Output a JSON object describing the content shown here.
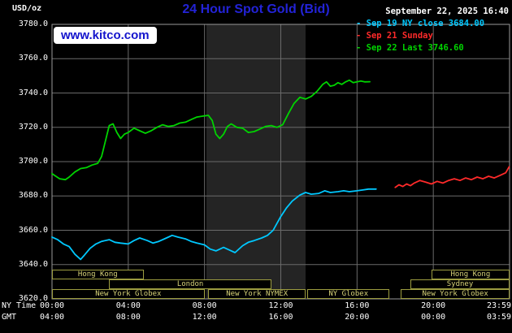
{
  "header": {
    "units_label": "USD/oz",
    "title": "24 Hour Spot Gold (Bid)",
    "datetime": "September 22, 2025 16:40",
    "watermark": "www.kitco.com"
  },
  "colors": {
    "background": "#000000",
    "title_blue": "#2323d7",
    "watermark_blue": "#1414cc",
    "grid": "#6a6a6a",
    "plot_border": "#9a9a9a",
    "band": "#242424",
    "session_border": "#9c9c40",
    "session_text": "#d6d278",
    "cyan": "#00c8ff",
    "red": "#ff2a2a",
    "green": "#00d400"
  },
  "legend": [
    {
      "label": "Sep 19 NY close 3684.00",
      "color": "#00c8ff"
    },
    {
      "label": "Sep 21 Sunday",
      "color": "#ff2a2a"
    },
    {
      "label": "Sep 22 Last 3746.60",
      "color": "#00d400"
    }
  ],
  "axes": {
    "y_ticks": [
      "3780.0",
      "3760.0",
      "3740.0",
      "3720.0",
      "3700.0",
      "3680.0",
      "3660.0",
      "3640.0",
      "3620.0"
    ],
    "x_ticks_ny": [
      "00:00",
      "04:00",
      "08:00",
      "12:00",
      "16:00",
      "20:00",
      "23:59"
    ],
    "x_ticks_gmt": [
      "04:00",
      "08:00",
      "12:00",
      "16:00",
      "20:00",
      "00:00",
      "03:59"
    ],
    "x_axis_label_ny": "NY Time",
    "x_axis_label_gmt": "GMT"
  },
  "sessions": [
    {
      "label": "Hong Kong",
      "row": 1,
      "start": 0,
      "end": 4.8
    },
    {
      "label": "Hong Kong",
      "row": 1,
      "start": 19.9,
      "end": 24
    },
    {
      "label": "London",
      "row": 2,
      "start": 3.0,
      "end": 11.5
    },
    {
      "label": "Sydney",
      "row": 2,
      "start": 18.8,
      "end": 24
    },
    {
      "label": "New York Globex",
      "row": 3,
      "start": 0,
      "end": 8.0
    },
    {
      "label": "New York NYMEX",
      "row": 3,
      "start": 8.2,
      "end": 13.3
    },
    {
      "label": "NY Globex",
      "row": 3,
      "start": 13.4,
      "end": 17.7
    },
    {
      "label": "New York Globex",
      "row": 3,
      "start": 18.3,
      "end": 24
    }
  ],
  "chart_data": {
    "type": "line",
    "title": "24 Hour Spot Gold (Bid)",
    "xlabel": "NY Time",
    "ylabel": "USD/oz",
    "xlim": [
      0,
      24
    ],
    "ylim": [
      3620,
      3780
    ],
    "grid": true,
    "legend_position": "top-right",
    "highlight_band_hours": [
      8.1,
      13.3
    ],
    "series": [
      {
        "id": "sep19",
        "name": "Sep 19 NY close 3684.00",
        "color": "#00c8ff",
        "x": [
          0,
          0.3,
          0.6,
          0.9,
          1.2,
          1.5,
          1.7,
          2.0,
          2.3,
          2.6,
          3.0,
          3.3,
          3.6,
          4.0,
          4.3,
          4.6,
          5.0,
          5.3,
          5.6,
          6.0,
          6.3,
          6.6,
          7.0,
          7.3,
          7.6,
          8.0,
          8.3,
          8.6,
          9.0,
          9.3,
          9.6,
          10.0,
          10.3,
          10.6,
          11.0,
          11.3,
          11.6,
          12.0,
          12.3,
          12.6,
          13.0,
          13.3,
          13.6,
          14.0,
          14.3,
          14.6,
          15.0,
          15.3,
          15.6,
          16.0,
          16.3,
          16.6,
          17.0
        ],
        "y": [
          3656,
          3654.5,
          3652,
          3650.5,
          3646,
          3643,
          3645.5,
          3649.5,
          3652,
          3653.5,
          3654.5,
          3653,
          3652.5,
          3652,
          3654,
          3655.5,
          3654,
          3652.5,
          3653.5,
          3655.5,
          3657,
          3656,
          3655,
          3653.5,
          3652.5,
          3651.5,
          3649,
          3648,
          3650,
          3648.5,
          3647,
          3651,
          3653,
          3654,
          3655.5,
          3657,
          3660,
          3668,
          3673,
          3677,
          3680.5,
          3682,
          3681,
          3681.5,
          3683,
          3682,
          3682.5,
          3683,
          3682.5,
          3683,
          3683.5,
          3684,
          3684
        ]
      },
      {
        "id": "sep21",
        "name": "Sep 21 Sunday",
        "color": "#ff2a2a",
        "x": [
          18.0,
          18.2,
          18.4,
          18.6,
          18.8,
          19.0,
          19.3,
          19.6,
          19.9,
          20.2,
          20.5,
          20.8,
          21.1,
          21.4,
          21.7,
          22.0,
          22.3,
          22.6,
          22.9,
          23.2,
          23.5,
          23.8,
          23.98
        ],
        "y": [
          3685,
          3686.5,
          3685.5,
          3687,
          3686,
          3687.5,
          3689,
          3688,
          3687,
          3688.5,
          3687.5,
          3689,
          3690,
          3689,
          3690.5,
          3689.5,
          3691,
          3690,
          3691.5,
          3690.5,
          3692,
          3693.5,
          3697
        ]
      },
      {
        "id": "sep22",
        "name": "Sep 22 Last 3746.60",
        "color": "#00d400",
        "x": [
          0,
          0.2,
          0.4,
          0.7,
          0.9,
          1.2,
          1.5,
          1.8,
          2.1,
          2.4,
          2.6,
          2.8,
          3.0,
          3.2,
          3.4,
          3.6,
          3.8,
          4.0,
          4.3,
          4.6,
          4.9,
          5.2,
          5.5,
          5.8,
          6.1,
          6.4,
          6.7,
          7.0,
          7.3,
          7.6,
          7.9,
          8.2,
          8.4,
          8.6,
          8.8,
          9.0,
          9.2,
          9.4,
          9.7,
          10.0,
          10.3,
          10.6,
          10.9,
          11.2,
          11.5,
          11.8,
          12.1,
          12.4,
          12.7,
          13.0,
          13.3,
          13.6,
          13.9,
          14.2,
          14.4,
          14.6,
          14.8,
          15.0,
          15.2,
          15.4,
          15.6,
          15.8,
          16.0,
          16.2,
          16.4,
          16.67
        ],
        "y": [
          3693,
          3691.5,
          3690,
          3689.5,
          3691,
          3694,
          3696,
          3696.5,
          3698,
          3699,
          3703,
          3712,
          3721,
          3722,
          3717,
          3713.5,
          3716,
          3717,
          3719.5,
          3718,
          3716.5,
          3718,
          3720,
          3721.5,
          3720.5,
          3721,
          3722.5,
          3723,
          3724.5,
          3726,
          3726.5,
          3727,
          3724,
          3716,
          3713.5,
          3716,
          3720.5,
          3722,
          3720,
          3719.5,
          3717,
          3717.5,
          3719,
          3720.5,
          3721,
          3720,
          3721.5,
          3728,
          3734,
          3737.5,
          3736.5,
          3738,
          3741,
          3745,
          3746.5,
          3744,
          3744.5,
          3746,
          3745,
          3746.5,
          3747.5,
          3746,
          3746.5,
          3747,
          3746.5,
          3746.6
        ]
      }
    ]
  }
}
